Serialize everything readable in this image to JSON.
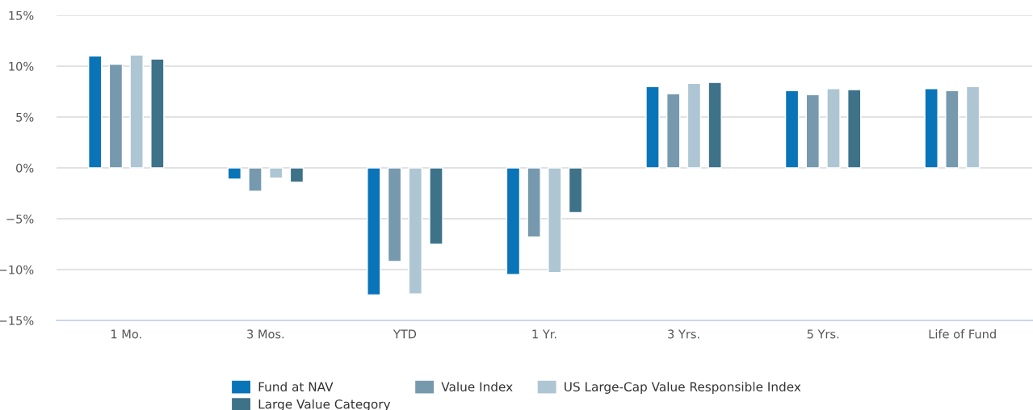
{
  "chart_data": {
    "type": "bar",
    "categories": [
      "1 Mo.",
      "3 Mos.",
      "YTD",
      "1 Yr.",
      "3 Yrs.",
      "5 Yrs.",
      "Life of Fund"
    ],
    "series": [
      {
        "name": "Fund at NAV",
        "color": "#0a74b8",
        "values": [
          11.0,
          -1.1,
          -12.5,
          -10.5,
          8.0,
          7.6,
          7.8
        ]
      },
      {
        "name": "Value Index",
        "color": "#7699ae",
        "values": [
          10.2,
          -2.3,
          -9.2,
          -6.8,
          7.3,
          7.2,
          7.6
        ]
      },
      {
        "name": "US Large-Cap Value Responsible Index",
        "color": "#aec6d3",
        "values": [
          11.1,
          -1.0,
          -12.4,
          -10.3,
          8.3,
          7.8,
          8.0
        ]
      },
      {
        "name": "Large Value Category",
        "color": "#3d7289",
        "values": [
          10.7,
          -1.4,
          -7.5,
          -4.4,
          8.4,
          7.7,
          null
        ]
      }
    ],
    "ylim": [
      -15,
      15
    ],
    "yticks": [
      {
        "value": -15,
        "label": "−15%"
      },
      {
        "value": -10,
        "label": "−10%"
      },
      {
        "value": -5,
        "label": "−5%"
      },
      {
        "value": 0,
        "label": "0%"
      },
      {
        "value": 5,
        "label": "5%"
      },
      {
        "value": 10,
        "label": "10%"
      },
      {
        "value": 15,
        "label": "15%"
      }
    ],
    "grid": "y",
    "legend": "bottom"
  }
}
